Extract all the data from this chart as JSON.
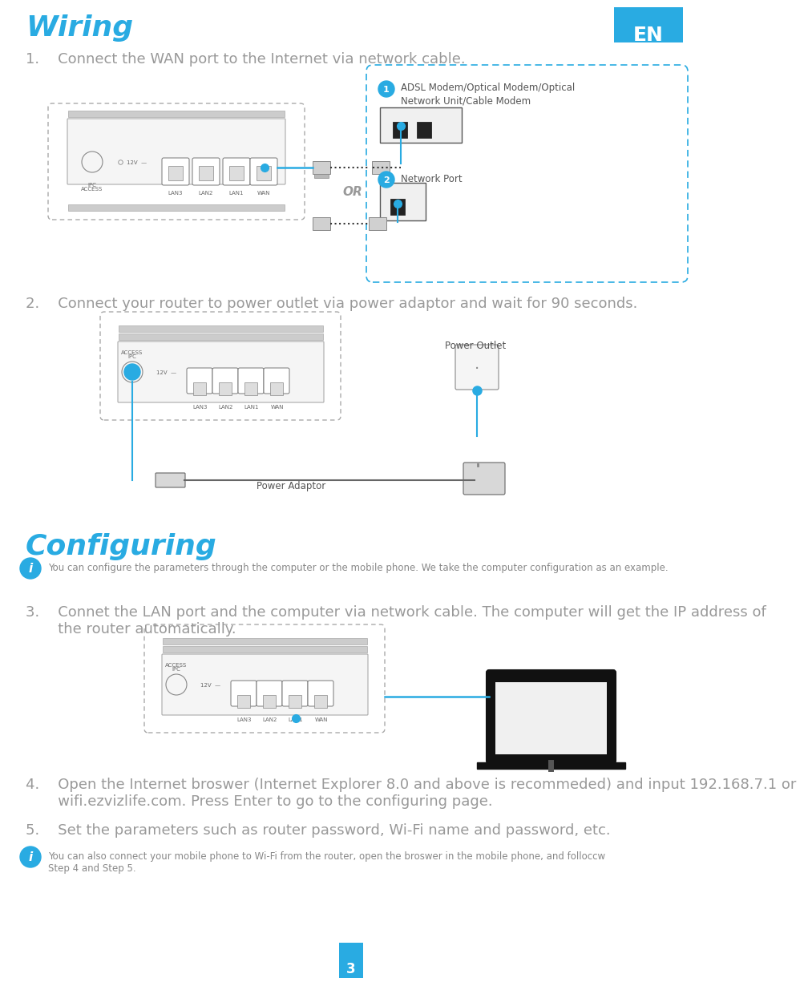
{
  "title": "Wiring",
  "title_color": "#29abe2",
  "title_fontsize": 26,
  "en_box_color": "#29abe2",
  "en_text": "EN",
  "bg_color": "#ffffff",
  "step1_text": "1.    Connect the WAN port to the Internet via network cable.",
  "step2_text": "2.    Connect your router to power outlet via power adaptor and wait for 90 seconds.",
  "step3_text": "3.    Connet the LAN port and the computer via network cable. The computer will get the IP address of\n       the router automatically.",
  "step4_text": "4.    Open the Internet broswer (Internet Explorer 8.0 and above is recommeded) and input 192.168.7.1 or\n       wifi.ezvizlife.com. Press Enter to go to the configuring page.",
  "step5_text": "5.    Set the parameters such as router password, Wi-Fi name and password, etc.",
  "configuring_title": "Configuring",
  "configuring_color": "#29abe2",
  "info1_text": "You can configure the parameters through the computer or the mobile phone. We take the computer configuration as an example.",
  "info2_text": "You can also connect your mobile phone to Wi-Fi from the router, open the broswer in the mobile phone, and folloccw\nStep 4 and Step 5.",
  "adsl_label": "ADSL Modem/Optical Modem/Optical\nNetwork Unit/Cable Modem",
  "network_port_label": "Network Port",
  "power_outlet_label": "Power Outlet",
  "power_adaptor_label": "Power Adaptor",
  "or_text": "OR",
  "page_num": "3",
  "dashed_color": "#29abe2",
  "step_text_color": "#999999",
  "body_text_color": "#444444",
  "step_fontsize": 13,
  "body_fontsize": 8.5
}
